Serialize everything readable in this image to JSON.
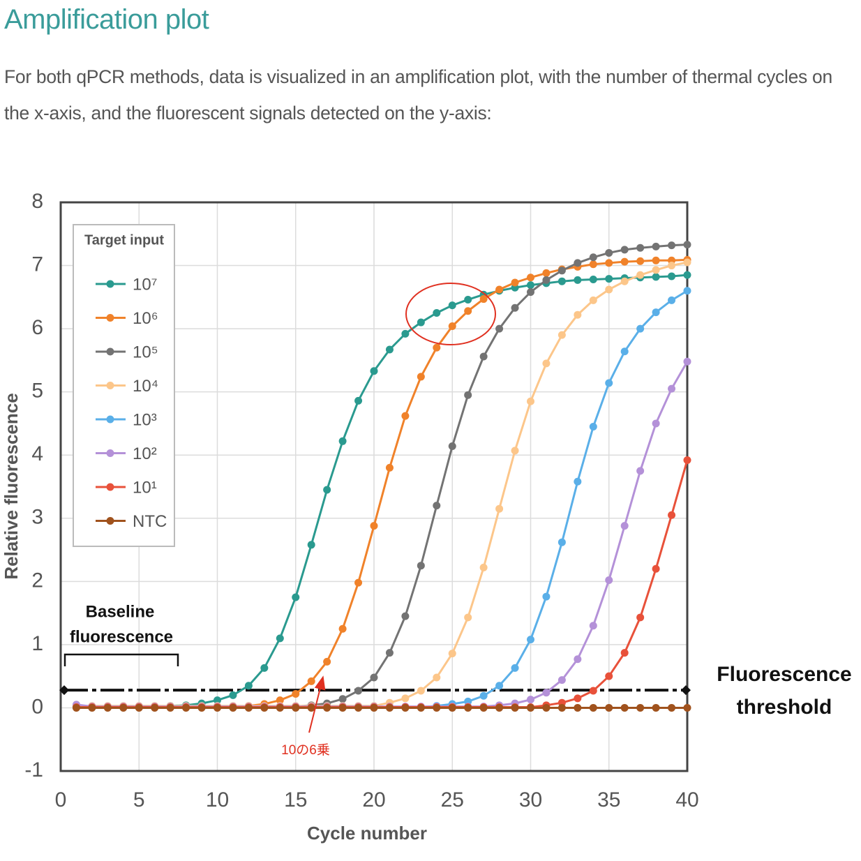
{
  "header": {
    "title": "Amplification plot",
    "text": "For both qPCR methods, data is visualized in an amplification plot, with the number of thermal cycles on the x-axis, and the fluorescent signals detected on the y-axis:"
  },
  "chart_data": {
    "type": "line",
    "x_label": "Cycle number",
    "y_label": "Relative fluorescence",
    "legend_title": "Target input",
    "x": [
      1,
      2,
      3,
      4,
      5,
      6,
      7,
      8,
      9,
      10,
      11,
      12,
      13,
      14,
      15,
      16,
      17,
      18,
      19,
      20,
      21,
      22,
      23,
      24,
      25,
      26,
      27,
      28,
      29,
      30,
      31,
      32,
      33,
      34,
      35,
      36,
      37,
      38,
      39,
      40
    ],
    "series": [
      {
        "name": "10⁷",
        "color": "#2a9a8f",
        "values": [
          0.02,
          0.02,
          0.02,
          0.02,
          0.02,
          0.02,
          0.03,
          0.04,
          0.07,
          0.12,
          0.2,
          0.35,
          0.63,
          1.1,
          1.75,
          2.58,
          3.45,
          4.22,
          4.86,
          5.33,
          5.67,
          5.92,
          6.1,
          6.25,
          6.37,
          6.46,
          6.54,
          6.6,
          6.65,
          6.69,
          6.72,
          6.75,
          6.77,
          6.78,
          6.79,
          6.8,
          6.81,
          6.82,
          6.83,
          6.85
        ]
      },
      {
        "name": "10⁶",
        "color": "#f0822a",
        "values": [
          0.01,
          0.01,
          0.01,
          0.01,
          0.01,
          0.01,
          0.01,
          0.01,
          0.01,
          0.01,
          0.01,
          0.03,
          0.06,
          0.12,
          0.22,
          0.42,
          0.73,
          1.25,
          1.98,
          2.88,
          3.8,
          4.62,
          5.24,
          5.7,
          6.04,
          6.28,
          6.47,
          6.62,
          6.73,
          6.81,
          6.88,
          6.94,
          6.98,
          7.02,
          7.04,
          7.06,
          7.07,
          7.08,
          7.08,
          7.09
        ]
      },
      {
        "name": "10⁵",
        "color": "#737373",
        "values": [
          0.02,
          0.02,
          0.02,
          0.02,
          0.02,
          0.02,
          0.02,
          0.02,
          0.02,
          0.02,
          0.02,
          0.02,
          0.02,
          0.02,
          0.02,
          0.04,
          0.07,
          0.14,
          0.27,
          0.48,
          0.87,
          1.45,
          2.25,
          3.2,
          4.14,
          4.95,
          5.56,
          6.0,
          6.33,
          6.58,
          6.77,
          6.92,
          7.04,
          7.13,
          7.2,
          7.25,
          7.28,
          7.3,
          7.32,
          7.33
        ]
      },
      {
        "name": "10⁴",
        "color": "#fcc68a",
        "values": [
          0.03,
          0.03,
          0.03,
          0.03,
          0.03,
          0.03,
          0.03,
          0.03,
          0.03,
          0.03,
          0.03,
          0.03,
          0.03,
          0.03,
          0.03,
          0.03,
          0.03,
          0.03,
          0.03,
          0.03,
          0.08,
          0.15,
          0.27,
          0.48,
          0.86,
          1.43,
          2.22,
          3.15,
          4.07,
          4.85,
          5.45,
          5.9,
          6.22,
          6.45,
          6.62,
          6.75,
          6.85,
          6.93,
          7.0,
          7.05
        ]
      },
      {
        "name": "10³",
        "color": "#5aafe8",
        "values": [
          0.01,
          0.01,
          0.01,
          0.01,
          0.01,
          0.01,
          0.01,
          0.01,
          0.01,
          0.01,
          0.01,
          0.01,
          0.01,
          0.01,
          0.01,
          0.01,
          0.01,
          0.01,
          0.01,
          0.01,
          0.01,
          0.01,
          0.01,
          0.03,
          0.06,
          0.1,
          0.19,
          0.35,
          0.63,
          1.08,
          1.76,
          2.62,
          3.58,
          4.45,
          5.14,
          5.64,
          6.0,
          6.26,
          6.45,
          6.6
        ]
      },
      {
        "name": "10²",
        "color": "#b491d8",
        "values": [
          0.05,
          0.02,
          0.02,
          0.02,
          0.02,
          0.02,
          0.02,
          0.02,
          0.02,
          0.02,
          0.02,
          0.02,
          0.02,
          0.02,
          0.02,
          0.02,
          0.02,
          0.02,
          0.02,
          0.02,
          0.02,
          0.02,
          0.02,
          0.02,
          0.02,
          0.02,
          0.02,
          0.04,
          0.07,
          0.13,
          0.24,
          0.44,
          0.77,
          1.3,
          2.02,
          2.88,
          3.75,
          4.5,
          5.05,
          5.48
        ]
      },
      {
        "name": "10¹",
        "color": "#e8513a",
        "values": [
          0.01,
          0.01,
          0.01,
          0.01,
          0.01,
          0.01,
          0.01,
          0.01,
          0.01,
          0.01,
          0.01,
          0.01,
          0.01,
          0.01,
          0.01,
          0.01,
          0.01,
          0.01,
          0.01,
          0.01,
          0.01,
          0.01,
          0.01,
          0.01,
          0.01,
          0.01,
          0.01,
          0.01,
          0.01,
          0.01,
          0.04,
          0.08,
          0.15,
          0.27,
          0.5,
          0.87,
          1.43,
          2.2,
          3.05,
          3.92
        ]
      },
      {
        "name": "NTC",
        "color": "#a0521d",
        "values": [
          0,
          0,
          0,
          0,
          0,
          0,
          0,
          0,
          0,
          0,
          0,
          0,
          0,
          0,
          0,
          0,
          0,
          0,
          0,
          0,
          0,
          0,
          0,
          0,
          0,
          0,
          0,
          0,
          0,
          0,
          0,
          0,
          0,
          0,
          0,
          0,
          0,
          0,
          0,
          0
        ]
      }
    ],
    "xlim": [
      0,
      40
    ],
    "xticks": [
      0,
      5,
      10,
      15,
      20,
      25,
      30,
      35,
      40
    ],
    "ylim": [
      -1,
      8
    ],
    "yticks": [
      -1,
      0,
      1,
      2,
      3,
      4,
      5,
      6,
      7,
      8
    ],
    "grid": true,
    "threshold": 0.28,
    "annotations": {
      "baseline": [
        "Baseline",
        "fluorescence"
      ],
      "threshold": [
        "Fluorescence",
        "threshold"
      ],
      "note": "10の6乗"
    }
  }
}
